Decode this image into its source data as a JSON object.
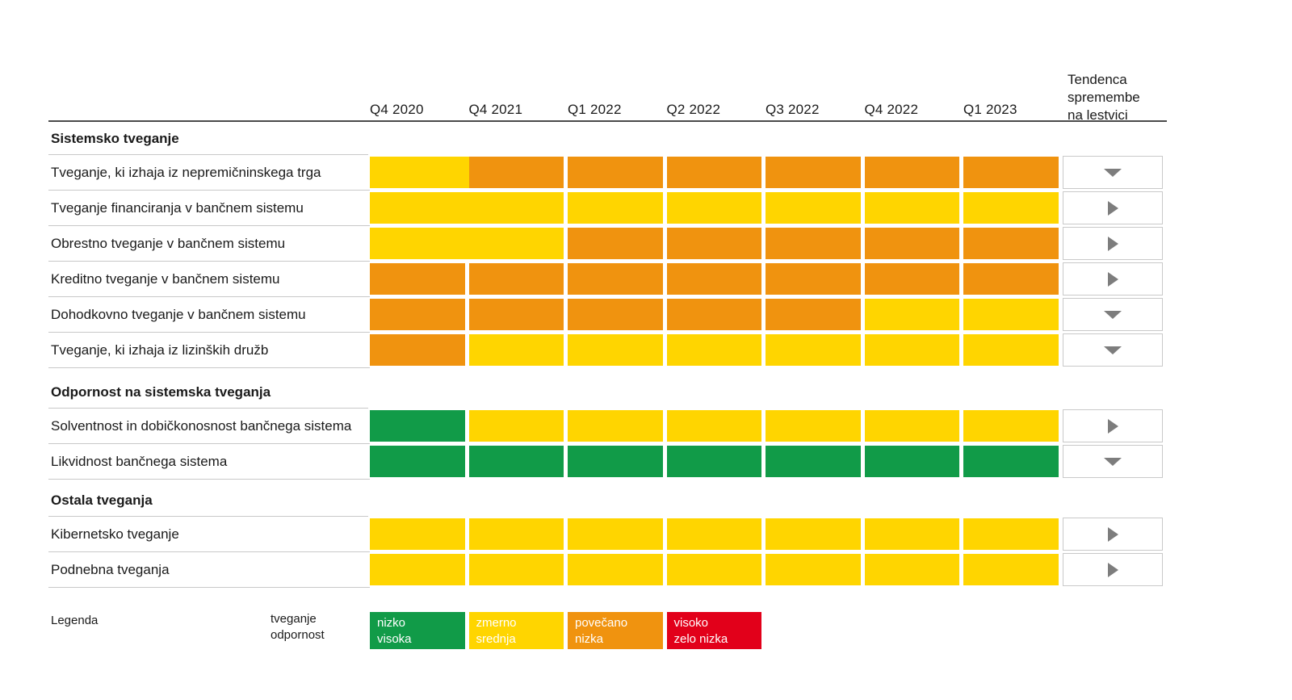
{
  "header": {
    "trend_header_lines": [
      "Tendenca",
      "spremembe",
      "na lestvici"
    ]
  },
  "colors": {
    "nizko": "#119B48",
    "zmerno": "#FFD500",
    "povečano": "#F0930F",
    "visoko": "#E2001A",
    "arrow": "#7D7D7D",
    "row_separator": "#C8C8C8",
    "header_line": "#4A4A4A",
    "text": "#1A1A1A"
  },
  "chart_data": {
    "type": "heatmap",
    "x": [
      "Q4 2020",
      "Q4 2021",
      "Q1 2022",
      "Q2 2022",
      "Q3 2022",
      "Q4 2022",
      "Q1 2023"
    ],
    "scale": {
      "nizko": "#119B48",
      "zmerno": "#FFD500",
      "povečano": "#F0930F",
      "visoko": "#E2001A"
    },
    "legend_position": "bottom",
    "sections": [
      {
        "name": "Sistemsko tveganje",
        "rows": [
          {
            "name": "Tveganje, ki izhaja iz nepremičninskega trga",
            "values": [
              "zmerno",
              "povečano",
              "povečano",
              "povečano",
              "povečano",
              "povečano",
              "povečano"
            ],
            "merged_first_pair": true,
            "trend": "down"
          },
          {
            "name": "Tveganje financiranja v bančnem sistemu",
            "values": [
              "zmerno",
              "zmerno",
              "zmerno",
              "zmerno",
              "zmerno",
              "zmerno",
              "zmerno"
            ],
            "merged_first_pair": true,
            "trend": "right"
          },
          {
            "name": "Obrestno tveganje v bančnem sistemu",
            "values": [
              "zmerno",
              "zmerno",
              "povečano",
              "povečano",
              "povečano",
              "povečano",
              "povečano"
            ],
            "merged_first_pair": true,
            "trend": "right"
          },
          {
            "name": "Kreditno tveganje v bančnem sistemu",
            "values": [
              "povečano",
              "povečano",
              "povečano",
              "povečano",
              "povečano",
              "povečano",
              "povečano"
            ],
            "merged_first_pair": false,
            "trend": "right"
          },
          {
            "name": "Dohodkovno tveganje v bančnem sistemu",
            "values": [
              "povečano",
              "povečano",
              "povečano",
              "povečano",
              "povečano",
              "zmerno",
              "zmerno"
            ],
            "merged_first_pair": false,
            "trend": "down"
          },
          {
            "name": "Tveganje, ki izhaja iz lizinških družb",
            "values": [
              "povečano",
              "zmerno",
              "zmerno",
              "zmerno",
              "zmerno",
              "zmerno",
              "zmerno"
            ],
            "merged_first_pair": false,
            "trend": "down"
          }
        ]
      },
      {
        "name": "Odpornost na sistemska tveganja",
        "rows": [
          {
            "name": "Solventnost in dobičkonosnost bančnega sistema",
            "values": [
              "nizko",
              "zmerno",
              "zmerno",
              "zmerno",
              "zmerno",
              "zmerno",
              "zmerno"
            ],
            "merged_first_pair": false,
            "trend": "right"
          },
          {
            "name": "Likvidnost bančnega sistema",
            "values": [
              "nizko",
              "nizko",
              "nizko",
              "nizko",
              "nizko",
              "nizko",
              "nizko"
            ],
            "merged_first_pair": false,
            "trend": "down"
          }
        ]
      },
      {
        "name": "Ostala tveganja",
        "rows": [
          {
            "name": "Kibernetsko tveganje",
            "values": [
              "zmerno",
              "zmerno",
              "zmerno",
              "zmerno",
              "zmerno",
              "zmerno",
              "zmerno"
            ],
            "merged_first_pair": false,
            "trend": "right"
          },
          {
            "name": "Podnebna tveganja",
            "values": [
              "zmerno",
              "zmerno",
              "zmerno",
              "zmerno",
              "zmerno",
              "zmerno",
              "zmerno"
            ],
            "merged_first_pair": false,
            "trend": "right"
          }
        ]
      }
    ]
  },
  "legend": {
    "title": "Legenda",
    "axis_label_lines": [
      "tveganje",
      "odpornost"
    ],
    "items": [
      {
        "level": "nizko",
        "risk_label": "nizko",
        "resilience_label": "visoka"
      },
      {
        "level": "zmerno",
        "risk_label": "zmerno",
        "resilience_label": "srednja"
      },
      {
        "level": "povečano",
        "risk_label": "povečano",
        "resilience_label": "nizka"
      },
      {
        "level": "visoko",
        "risk_label": "visoko",
        "resilience_label": "zelo nizka"
      }
    ]
  }
}
